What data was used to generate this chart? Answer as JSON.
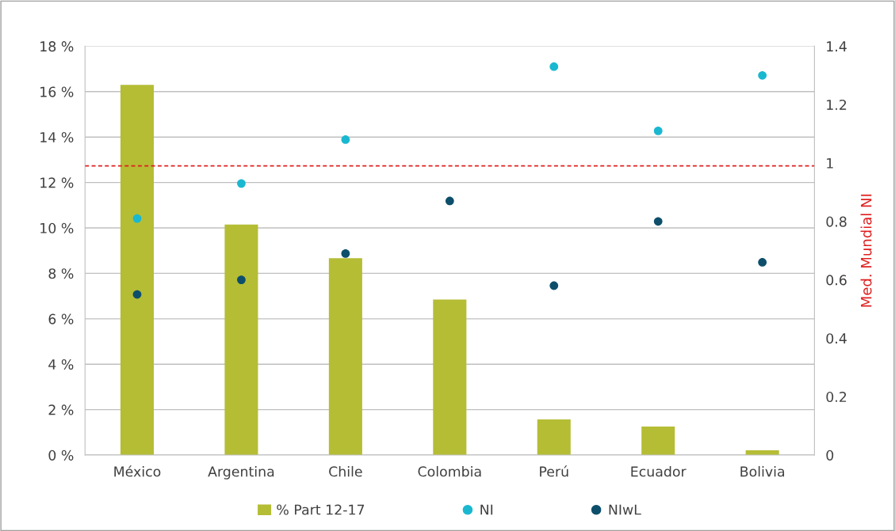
{
  "chart_data": {
    "type": "bar",
    "categories": [
      "México",
      "Argentina",
      "Chile",
      "Colombia",
      "Perú",
      "Ecuador",
      "Bolivia"
    ],
    "series": [
      {
        "name": "% Part 12-17",
        "color": "#b5bd35",
        "values": [
          16.3,
          10.15,
          8.67,
          6.85,
          1.57,
          1.26,
          0.21
        ]
      },
      {
        "name": "NI",
        "type": "scatter",
        "axis": "y2",
        "color": "#1ab8d0",
        "x": [
          "México",
          "Argentina",
          "Chile",
          "Colombia",
          "Perú",
          "Ecuador",
          "Bolivia"
        ],
        "values": [
          0.81,
          0.93,
          1.08,
          null,
          1.33,
          1.11,
          1.3
        ]
      },
      {
        "name": "NIwL",
        "type": "scatter",
        "axis": "y2",
        "color": "#0d4f6b",
        "x": [
          "México",
          "Argentina",
          "Chile",
          "Colombia",
          "Perú",
          "Ecuador",
          "Bolivia"
        ],
        "values": [
          0.55,
          0.6,
          0.69,
          0.87,
          0.58,
          0.8,
          0.66
        ]
      }
    ],
    "y2label": "Med. Mundial NI",
    "ylim": [
      0,
      18
    ],
    "yticks": [
      {
        "value": 0,
        "label": "0 %"
      },
      {
        "value": 2,
        "label": "2 %"
      },
      {
        "value": 4,
        "label": "4 %"
      },
      {
        "value": 6,
        "label": "6 %"
      },
      {
        "value": 8,
        "label": "8 %"
      },
      {
        "value": 10,
        "label": "10 %"
      },
      {
        "value": 12,
        "label": "12 %"
      },
      {
        "value": 14,
        "label": "14 %"
      },
      {
        "value": 16,
        "label": "16 %"
      },
      {
        "value": 18,
        "label": "18 %"
      }
    ],
    "y2lim": [
      0,
      1.4
    ],
    "y2ticks": [
      0,
      0.2,
      0.4,
      0.6,
      0.8,
      1,
      1.2,
      1.4
    ],
    "ref_lines": [
      {
        "axis": "y2",
        "value": 0.99,
        "color": "#e02020",
        "line_style": "dashed"
      }
    ],
    "grid": "y",
    "legend": "bottom",
    "marker": "circle"
  }
}
